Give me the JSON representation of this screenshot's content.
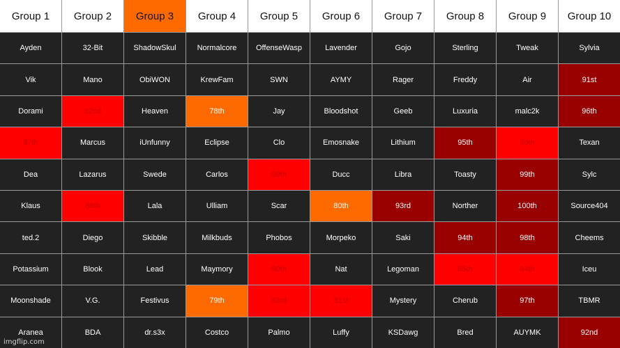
{
  "colors": {
    "default_header": "#ffffff",
    "default_cell": "#222222",
    "orange": "#ff6a00",
    "red": "#ff0000",
    "dark_red": "#990000",
    "highlight_text": "#cc0000"
  },
  "headers": [
    {
      "label": "Group 1"
    },
    {
      "label": "Group 2"
    },
    {
      "label": "Group 3",
      "fill": "orange"
    },
    {
      "label": "Group 4"
    },
    {
      "label": "Group 5"
    },
    {
      "label": "Group 6"
    },
    {
      "label": "Group 7"
    },
    {
      "label": "Group 8"
    },
    {
      "label": "Group 9"
    },
    {
      "label": "Group 10"
    }
  ],
  "rows": [
    [
      {
        "text": "Ayden"
      },
      {
        "text": "32-Bit"
      },
      {
        "text": "ShadowSkul"
      },
      {
        "text": "Normalcore"
      },
      {
        "text": "OffenseWasp"
      },
      {
        "text": "Lavender"
      },
      {
        "text": "Gojo"
      },
      {
        "text": "Sterling"
      },
      {
        "text": "Tweak"
      },
      {
        "text": "Sylvia"
      }
    ],
    [
      {
        "text": "Vik"
      },
      {
        "text": "Mano"
      },
      {
        "text": "ObiWON"
      },
      {
        "text": "KrewFam"
      },
      {
        "text": "SWN"
      },
      {
        "text": "AYMY"
      },
      {
        "text": "Rager"
      },
      {
        "text": "Freddy"
      },
      {
        "text": "Air"
      },
      {
        "text": "91st",
        "fill": "dark_red"
      }
    ],
    [
      {
        "text": "Dorami"
      },
      {
        "text": "82nd",
        "fill": "red",
        "red_text": true
      },
      {
        "text": "Heaven"
      },
      {
        "text": "78th",
        "fill": "orange"
      },
      {
        "text": "Jay"
      },
      {
        "text": "Bloodshot"
      },
      {
        "text": "Geeb"
      },
      {
        "text": "Luxuria"
      },
      {
        "text": "malc2k"
      },
      {
        "text": "96th",
        "fill": "dark_red"
      }
    ],
    [
      {
        "text": "87th",
        "fill": "red",
        "red_text": true
      },
      {
        "text": "Marcus"
      },
      {
        "text": "iUnfunny"
      },
      {
        "text": "Eclipse"
      },
      {
        "text": "Clo"
      },
      {
        "text": "Emosnake"
      },
      {
        "text": "Lithium"
      },
      {
        "text": "95th",
        "fill": "dark_red"
      },
      {
        "text": "86th",
        "fill": "red",
        "red_text": true
      },
      {
        "text": "Texan"
      }
    ],
    [
      {
        "text": "Dea"
      },
      {
        "text": "Lazarus"
      },
      {
        "text": "Swede"
      },
      {
        "text": "Carlos"
      },
      {
        "text": "89th",
        "fill": "red",
        "red_text": true
      },
      {
        "text": "Ducc"
      },
      {
        "text": "Libra"
      },
      {
        "text": "Toasty"
      },
      {
        "text": "99th",
        "fill": "dark_red"
      },
      {
        "text": "Sylc"
      }
    ],
    [
      {
        "text": "Klaus"
      },
      {
        "text": "88th",
        "fill": "red",
        "red_text": true
      },
      {
        "text": "Lala"
      },
      {
        "text": "Ulliam"
      },
      {
        "text": "Scar"
      },
      {
        "text": "80th",
        "fill": "orange"
      },
      {
        "text": "93rd",
        "fill": "dark_red"
      },
      {
        "text": "Norther"
      },
      {
        "text": "100th",
        "fill": "dark_red"
      },
      {
        "text": "Source404"
      }
    ],
    [
      {
        "text": "ted.2"
      },
      {
        "text": "Diego"
      },
      {
        "text": "Skibble"
      },
      {
        "text": "Milkbuds"
      },
      {
        "text": "Phobos"
      },
      {
        "text": "Morpeko"
      },
      {
        "text": "Saki"
      },
      {
        "text": "94th",
        "fill": "dark_red"
      },
      {
        "text": "98th",
        "fill": "dark_red"
      },
      {
        "text": "Cheems"
      }
    ],
    [
      {
        "text": "Potassium"
      },
      {
        "text": "Blook"
      },
      {
        "text": "Lead"
      },
      {
        "text": "Maymory"
      },
      {
        "text": "90th",
        "fill": "red",
        "red_text": true
      },
      {
        "text": "Nat"
      },
      {
        "text": "Legoman"
      },
      {
        "text": "85th",
        "fill": "red",
        "red_text": true
      },
      {
        "text": "84th",
        "fill": "red",
        "red_text": true
      },
      {
        "text": "Iceu"
      }
    ],
    [
      {
        "text": "Moonshade"
      },
      {
        "text": "V.G."
      },
      {
        "text": "Festivus"
      },
      {
        "text": "79th",
        "fill": "orange"
      },
      {
        "text": "83rd",
        "fill": "red",
        "red_text": true
      },
      {
        "text": "81st",
        "fill": "red",
        "red_text": true
      },
      {
        "text": "Mystery"
      },
      {
        "text": "Cherub"
      },
      {
        "text": "97th",
        "fill": "dark_red"
      },
      {
        "text": "TBMR"
      }
    ],
    [
      {
        "text": "Aranea"
      },
      {
        "text": "BDA"
      },
      {
        "text": "dr.s3x"
      },
      {
        "text": "Costco"
      },
      {
        "text": "Palmo"
      },
      {
        "text": "Luffy"
      },
      {
        "text": "KSDawg"
      },
      {
        "text": "Bred"
      },
      {
        "text": "AUYMK"
      },
      {
        "text": "92nd",
        "fill": "dark_red"
      }
    ]
  ],
  "watermark": "imgflip.com"
}
